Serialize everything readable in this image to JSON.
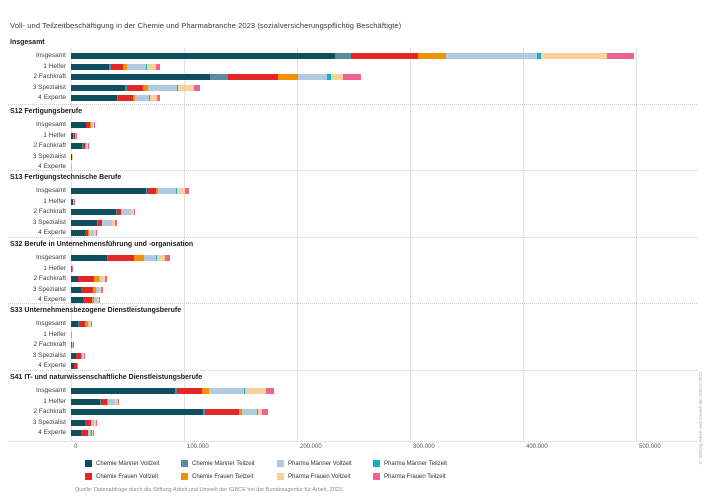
{
  "title": "Voll- und Teilzeitbeschäftigung in der Chemie und Pharmabranche 2023 (sozialversicherungspflichtig Beschäftigte)",
  "source_note": "Quelle: Datenabfrage durch die Stiftung Arbeit und Umwelt der IGBCE bei der Bundesagentur für Arbeit, 2023.",
  "credit_vertical": "© Stiftung Arbeit und Umwelt der IGBCE 2023",
  "chart_data": {
    "type": "bar",
    "orientation": "horizontal-stacked",
    "values_unit": "Beschäftigte in Tausend (aus Balkenlängen geschätzt)",
    "xlim": [
      0,
      510000
    ],
    "x_ticks": [
      "0",
      "100.000",
      "200.000",
      "300.000",
      "400.000",
      "500.000"
    ],
    "grid": true,
    "legend_position": "bottom",
    "series": [
      {
        "name": "Chemie Männer Vollzeit",
        "color": "#0d4f5f"
      },
      {
        "name": "Chemie Männer Teilzeit",
        "color": "#5b8c9d"
      },
      {
        "name": "Chemie Frauen Vollzeit",
        "color": "#e32726"
      },
      {
        "name": "Chemie Frauen Teilzeit",
        "color": "#f39200"
      },
      {
        "name": "Pharma Männer Vollzeit",
        "color": "#b0cbdf"
      },
      {
        "name": "Pharma Männer Teilzeit",
        "color": "#0cb4c9"
      },
      {
        "name": "Pharma Frauen Vollzeit",
        "color": "#fad09a"
      },
      {
        "name": "Pharma Frauen Teilzeit",
        "color": "#ef6390"
      }
    ],
    "row_labels": [
      "Insgesamt",
      "1 Helfer",
      "2 Fachkraft",
      "3 Spezialist",
      "4 Experte"
    ],
    "groups": [
      {
        "label": "Insgesamt",
        "rows": [
          {
            "label": "Insgesamt",
            "values": [
              234,
              14,
              59,
              25,
              80,
              4,
              58,
              24
            ]
          },
          {
            "label": "1 Helfer",
            "values": [
              34,
              1,
              11,
              4,
              16,
              1,
              8,
              4
            ]
          },
          {
            "label": "2 Fachkraft",
            "values": [
              123,
              16,
              44,
              18,
              26,
              3,
              11,
              16
            ]
          },
          {
            "label": "3 Spezialist",
            "values": [
              48,
              2,
              14,
              4,
              26,
              1,
              14,
              5
            ]
          },
          {
            "label": "4 Experte",
            "values": [
              41,
              1,
              13,
              2,
              12,
              1,
              6,
              3
            ]
          }
        ]
      },
      {
        "label": "S12 Fertigungsberufe",
        "rows": [
          {
            "label": "Insgesamt",
            "values": [
              13,
              0.4,
              3.5,
              0.8,
              2,
              0.1,
              0.8,
              0.4
            ]
          },
          {
            "label": "1 Helfer",
            "values": [
              2.2,
              0.1,
              1.2,
              0.2,
              0.5,
              0,
              0.3,
              0.1
            ]
          },
          {
            "label": "2 Fachkraft",
            "values": [
              10,
              0.3,
              2.5,
              0.5,
              1.2,
              0.1,
              0.3,
              0.2
            ]
          },
          {
            "label": "3 Spezialist",
            "values": [
              0.8,
              0,
              0.2,
              0,
              0.2,
              0,
              0.1,
              0
            ]
          },
          {
            "label": "4 Experte",
            "values": [
              0.3,
              0,
              0.1,
              0,
              0.1,
              0,
              0,
              0
            ]
          }
        ]
      },
      {
        "label": "S13 Fertigungstechnische Berufe",
        "rows": [
          {
            "label": "Insgesamt",
            "values": [
              66,
              1.5,
              8,
              1.5,
              16,
              0.6,
              7,
              3.5
            ]
          },
          {
            "label": "1 Helfer",
            "values": [
              1.5,
              0,
              0.4,
              0.1,
              0.3,
              0,
              0.1,
              0.1
            ]
          },
          {
            "label": "2 Fachkraft",
            "values": [
              40,
              1,
              3,
              0.5,
              8.5,
              0.3,
              2.5,
              1
            ]
          },
          {
            "label": "3 Spezialist",
            "values": [
              23,
              0.5,
              3.5,
              0.5,
              8.5,
              0.3,
              3,
              1.4
            ]
          },
          {
            "label": "4 Experte",
            "values": [
              12.5,
              0.3,
              2.5,
              0.3,
              5,
              0.2,
              1.5,
              0.7
            ]
          }
        ]
      },
      {
        "label": "S32 Berufe in Unternehmensführung und -organisation",
        "rows": [
          {
            "label": "Insgesamt",
            "values": [
              32,
              1,
              23,
              8.5,
              11,
              0.4,
              7,
              5
            ]
          },
          {
            "label": "1 Helfer",
            "values": [
              0.3,
              0,
              0.4,
              0.2,
              0.1,
              0,
              0.1,
              0.1
            ]
          },
          {
            "label": "2 Fachkraft",
            "values": [
              6,
              0.3,
              14,
              4.5,
              1.5,
              0.1,
              3.5,
              2
            ]
          },
          {
            "label": "3 Spezialist",
            "values": [
              9,
              0.3,
              10.5,
              2.7,
              2,
              0.1,
              1.8,
              1.6
            ]
          },
          {
            "label": "4 Experte",
            "values": [
              10.5,
              0.3,
              8,
              1.8,
              2.2,
              0.1,
              1.8,
              0.8
            ]
          }
        ]
      },
      {
        "label": "S33 Unternehmensbezogene Dienstleistungsberufe",
        "rows": [
          {
            "label": "Insgesamt",
            "values": [
              6.5,
              0.3,
              5.5,
              2.5,
              1,
              0.1,
              2,
              1
            ]
          },
          {
            "label": "1 Helfer",
            "values": [
              0.1,
              0,
              0.1,
              0.1,
              0,
              0,
              0,
              0
            ]
          },
          {
            "label": "2 Fachkraft",
            "values": [
              0.3,
              0,
              0.5,
              0.5,
              0.1,
              0,
              0.1,
              0.1
            ]
          },
          {
            "label": "3 Spezialist",
            "values": [
              4.5,
              0.1,
              4,
              1,
              0.7,
              0,
              0.8,
              0.5
            ]
          },
          {
            "label": "4 Experte",
            "values": [
              2.8,
              0.1,
              2,
              0.2,
              0.4,
              0,
              0.2,
              0.3
            ]
          }
        ]
      },
      {
        "label": "S41 IT- und naturwissenschaftliche Dienstleistungsberufe",
        "rows": [
          {
            "label": "Insgesamt",
            "values": [
              92,
              2,
              22,
              6,
              31,
              1,
              18.5,
              7
            ]
          },
          {
            "label": "1 Helfer",
            "values": [
              26,
              0.5,
              5.5,
              1,
              6,
              0.3,
              2,
              1.2
            ]
          },
          {
            "label": "2 Fachkraft",
            "values": [
              117,
              2,
              30,
              2.5,
              13,
              1,
              3.5,
              5
            ]
          },
          {
            "label": "3 Spezialist",
            "values": [
              12,
              0.3,
              5,
              0.7,
              2.5,
              0.2,
              1.3,
              1
            ]
          },
          {
            "label": "4 Experte",
            "values": [
              9,
              0.3,
              5.5,
              0.5,
              2.7,
              0.2,
              1,
              0.8
            ]
          }
        ]
      }
    ]
  }
}
